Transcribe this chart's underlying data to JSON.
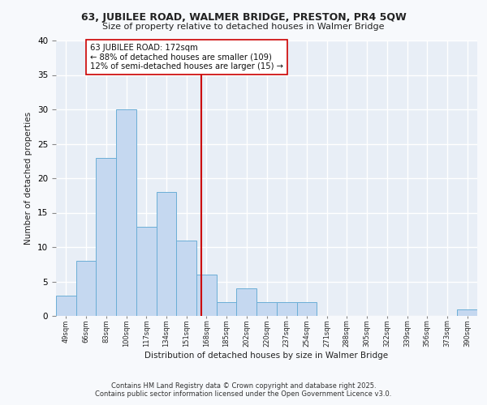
{
  "title1": "63, JUBILEE ROAD, WALMER BRIDGE, PRESTON, PR4 5QW",
  "title2": "Size of property relative to detached houses in Walmer Bridge",
  "xlabel": "Distribution of detached houses by size in Walmer Bridge",
  "ylabel": "Number of detached properties",
  "bin_labels": [
    "49sqm",
    "66sqm",
    "83sqm",
    "100sqm",
    "117sqm",
    "134sqm",
    "151sqm",
    "168sqm",
    "185sqm",
    "202sqm",
    "220sqm",
    "237sqm",
    "254sqm",
    "271sqm",
    "288sqm",
    "305sqm",
    "322sqm",
    "339sqm",
    "356sqm",
    "373sqm",
    "390sqm"
  ],
  "bar_values": [
    3,
    8,
    23,
    30,
    13,
    18,
    11,
    6,
    2,
    4,
    2,
    2,
    2,
    0,
    0,
    0,
    0,
    0,
    0,
    0,
    1
  ],
  "bar_color": "#c5d8f0",
  "bar_edgecolor": "#6baed6",
  "fig_bg_color": "#f7f9fc",
  "plot_bg_color": "#e8eef6",
  "grid_color": "#ffffff",
  "vline_color": "#cc0000",
  "annotation_text": "63 JUBILEE ROAD: 172sqm\n← 88% of detached houses are smaller (109)\n12% of semi-detached houses are larger (15) →",
  "annotation_box_color": "#ffffff",
  "annotation_box_edgecolor": "#cc0000",
  "footnote1": "Contains HM Land Registry data © Crown copyright and database right 2025.",
  "footnote2": "Contains public sector information licensed under the Open Government Licence v3.0.",
  "ylim": [
    0,
    40
  ],
  "yticks": [
    0,
    5,
    10,
    15,
    20,
    25,
    30,
    35,
    40
  ]
}
